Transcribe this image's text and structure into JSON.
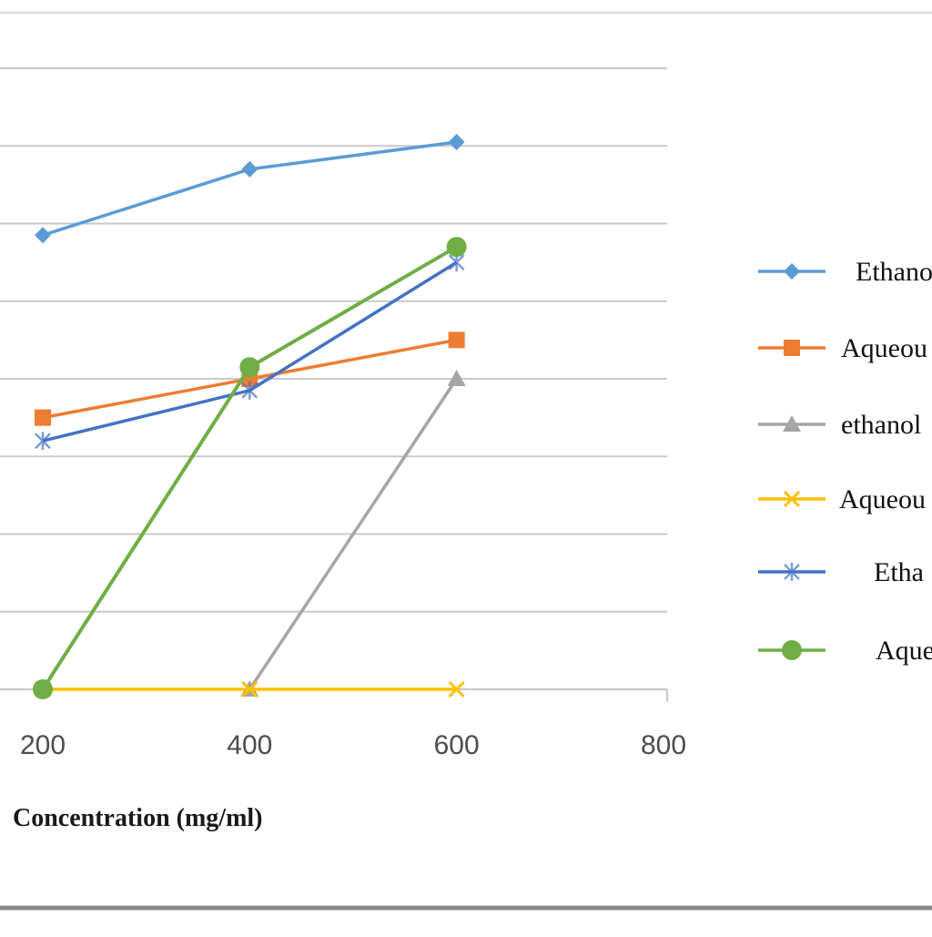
{
  "chart_data": {
    "type": "line",
    "xlabel": "Concentration  (mg/ml)",
    "xlim": [
      200,
      800
    ],
    "x_ticks": [
      200,
      400,
      600,
      800
    ],
    "ylim": [
      0,
      8
    ],
    "grid": true,
    "legend_position": "right",
    "series": [
      {
        "name": "Ethano",
        "color": "#5b9bd5",
        "marker": "diamond",
        "x": [
          200,
          400,
          600
        ],
        "y": [
          5.85,
          6.7,
          7.05
        ]
      },
      {
        "name": "Aqueou",
        "color": "#ed7d31",
        "marker": "square",
        "x": [
          200,
          400,
          600
        ],
        "y": [
          3.5,
          4.0,
          4.5
        ]
      },
      {
        "name": "ethanol",
        "color": "#a5a5a5",
        "marker": "triangle",
        "x": [
          400,
          600
        ],
        "y": [
          0.0,
          4.0
        ]
      },
      {
        "name": "Aqueou",
        "color": "#ffc000",
        "marker": "x",
        "x": [
          200,
          400,
          600
        ],
        "y": [
          0.0,
          0.0,
          0.0
        ]
      },
      {
        "name": "Etha",
        "color": "#4472c4",
        "marker": "star",
        "x": [
          200,
          400,
          600
        ],
        "y": [
          3.2,
          3.85,
          5.5
        ]
      },
      {
        "name": "Aque",
        "color": "#70ad47",
        "marker": "circle",
        "x": [
          200,
          400,
          600
        ],
        "y": [
          0.0,
          4.15,
          5.7
        ]
      }
    ]
  }
}
